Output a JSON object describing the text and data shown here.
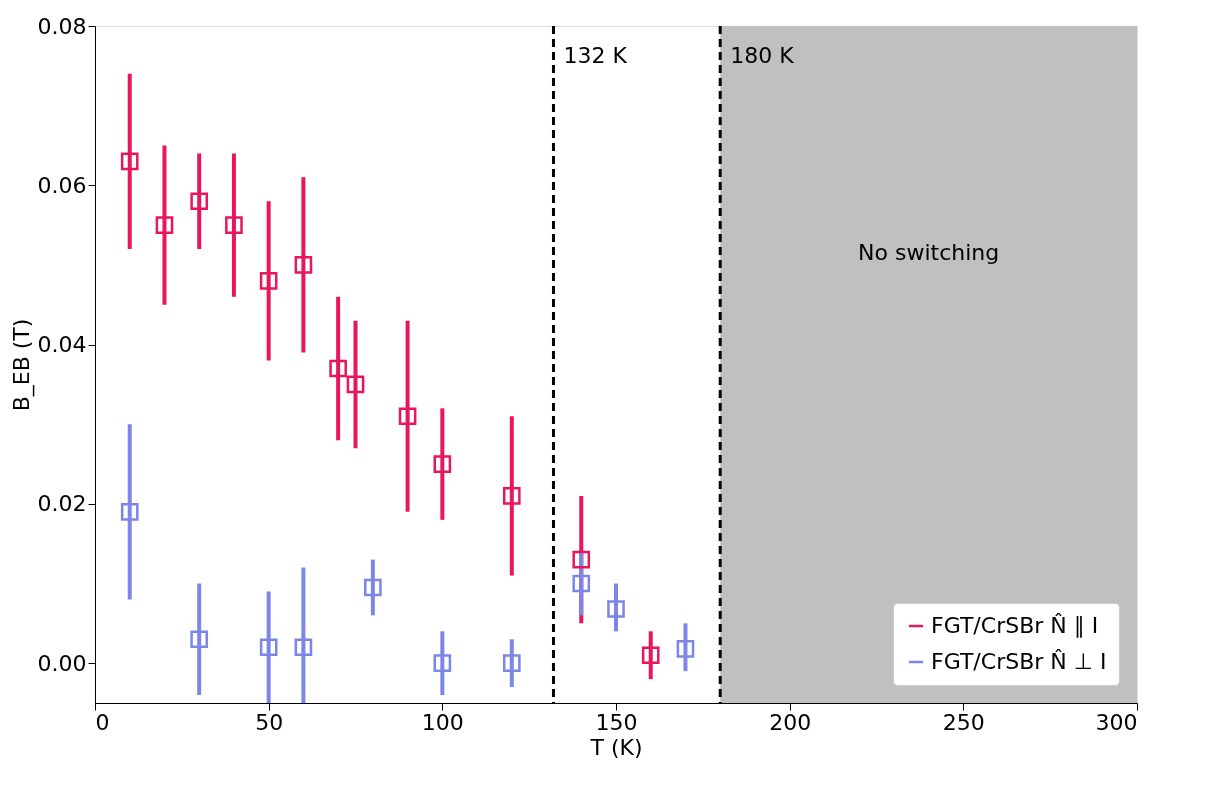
{
  "chart_data": {
    "type": "scatter",
    "xlabel": "T (K)",
    "ylabel": "B_EB (T)",
    "xlim": [
      0,
      300
    ],
    "xticks": [
      0,
      50,
      100,
      150,
      200,
      250,
      300
    ],
    "ylim": [
      -0.005,
      0.08
    ],
    "yticks": [
      {
        "value": 0,
        "label": "0.00"
      },
      {
        "value": 0.02,
        "label": "0.02"
      },
      {
        "value": 0.04,
        "label": "0.04"
      },
      {
        "value": 0.06,
        "label": "0.06"
      },
      {
        "value": 0.08,
        "label": "0.08"
      }
    ],
    "marker": "square",
    "grid": false,
    "legend": "bottom right",
    "series": [
      {
        "name": "FGT/CrSBr N̂ ∥ I",
        "color": "#e8175d",
        "x": [
          10,
          20,
          30,
          40,
          50,
          60,
          70,
          75,
          90,
          100,
          120,
          140,
          160
        ],
        "values": [
          0.063,
          0.055,
          0.058,
          0.055,
          0.048,
          0.05,
          0.037,
          0.035,
          0.031,
          0.025,
          0.021,
          0.013,
          0.001
        ],
        "errors": [
          [
            0.052,
            0.074
          ],
          [
            0.045,
            0.065
          ],
          [
            0.052,
            0.064
          ],
          [
            0.046,
            0.064
          ],
          [
            0.038,
            0.058
          ],
          [
            0.039,
            0.061
          ],
          [
            0.028,
            0.046
          ],
          [
            0.027,
            0.043
          ],
          [
            0.019,
            0.043
          ],
          [
            0.018,
            0.032
          ],
          [
            0.011,
            0.031
          ],
          [
            0.005,
            0.021
          ],
          [
            -0.002,
            0.004
          ]
        ]
      },
      {
        "name": "FGT/CrSBr N̂ ⊥ I",
        "color": "#7b86e8",
        "x": [
          10,
          30,
          50,
          60,
          80,
          100,
          120,
          140,
          150,
          170
        ],
        "values": [
          0.019,
          0.003,
          0.002,
          0.002,
          0.0095,
          0.0,
          0.0,
          0.01,
          0.0068,
          0.0018
        ],
        "errors": [
          [
            0.008,
            0.03
          ],
          [
            -0.004,
            0.01
          ],
          [
            -0.005,
            0.009
          ],
          [
            -0.005,
            0.012
          ],
          [
            0.006,
            0.013
          ],
          [
            -0.004,
            0.004
          ],
          [
            -0.003,
            0.003
          ],
          [
            0.006,
            0.014
          ],
          [
            0.004,
            0.01
          ],
          [
            -0.001,
            0.005
          ]
        ]
      }
    ],
    "ref_lines": [
      {
        "axis": "x",
        "value": 132,
        "label": "132 K",
        "color": "#000000",
        "line_style": "dashed"
      },
      {
        "axis": "x",
        "value": 180,
        "label": "180 K",
        "color": "#000000",
        "line_style": "dashed"
      }
    ],
    "bands": [
      {
        "axis": "x",
        "from": 180,
        "to": 300,
        "label": "No switching",
        "color": "#c0c0c0"
      }
    ]
  }
}
